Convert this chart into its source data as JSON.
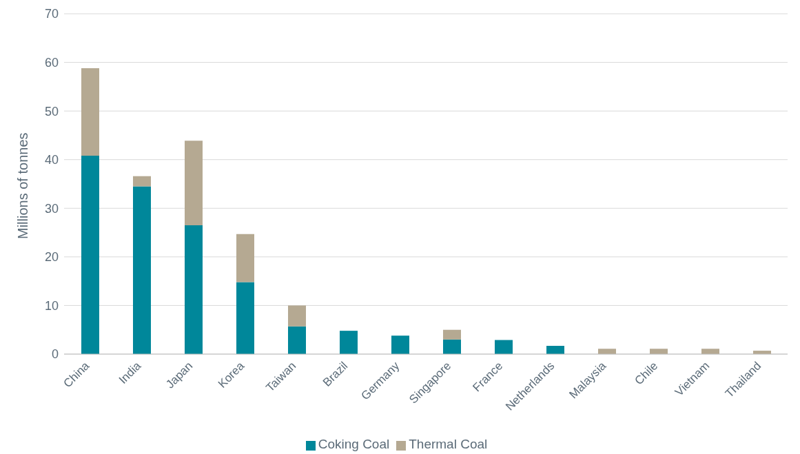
{
  "chart_data": {
    "type": "bar",
    "ylabel": "Millions of tonnes",
    "categories": [
      "China",
      "India",
      "Japan",
      "Korea",
      "Taiwan",
      "Brazil",
      "Germany",
      "Singapore",
      "France",
      "Netherlands",
      "Malaysia",
      "Chile",
      "Vietnam",
      "Thailand"
    ],
    "series": [
      {
        "name": "Coking  Coal",
        "color": "#00879a",
        "values": [
          40.8,
          34.5,
          26.5,
          14.8,
          5.7,
          4.8,
          3.8,
          3.0,
          2.9,
          1.7,
          0,
          0,
          0,
          0
        ]
      },
      {
        "name": "Thermal Coal",
        "color": "#b5a992",
        "values": [
          18.0,
          2.1,
          17.4,
          9.9,
          4.3,
          0,
          0,
          2.0,
          0,
          0,
          1.1,
          1.1,
          1.1,
          0.7
        ]
      }
    ],
    "stacked": true,
    "ylim": [
      0,
      70
    ],
    "yticks": [
      0,
      10,
      20,
      30,
      40,
      50,
      60,
      70
    ],
    "grid": "y",
    "legend": "bottom"
  }
}
